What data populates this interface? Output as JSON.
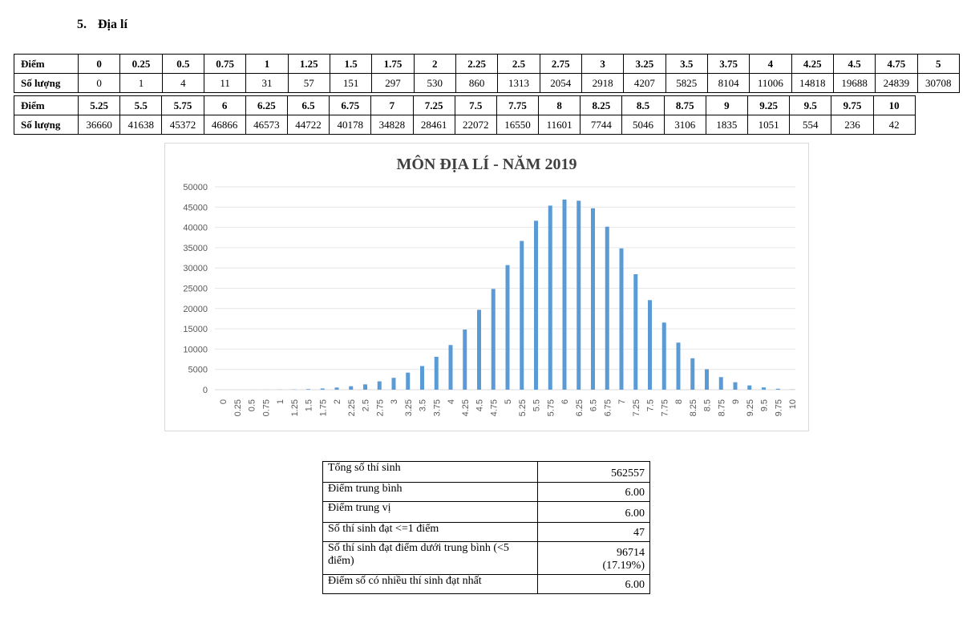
{
  "section": {
    "number": "5.",
    "title": "Địa lí"
  },
  "score_table": {
    "row_label_score": "Điểm",
    "row_label_count": "Số lượng",
    "block1_scores": [
      "0",
      "0.25",
      "0.5",
      "0.75",
      "1",
      "1.25",
      "1.5",
      "1.75",
      "2",
      "2.25",
      "2.5",
      "2.75",
      "3",
      "3.25",
      "3.5",
      "3.75",
      "4",
      "4.25",
      "4.5",
      "4.75",
      "5"
    ],
    "block1_counts": [
      "0",
      "1",
      "4",
      "11",
      "31",
      "57",
      "151",
      "297",
      "530",
      "860",
      "1313",
      "2054",
      "2918",
      "4207",
      "5825",
      "8104",
      "11006",
      "14818",
      "19688",
      "24839",
      "30708"
    ],
    "block2_scores": [
      "5.25",
      "5.5",
      "5.75",
      "6",
      "6.25",
      "6.5",
      "6.75",
      "7",
      "7.25",
      "7.5",
      "7.75",
      "8",
      "8.25",
      "8.5",
      "8.75",
      "9",
      "9.25",
      "9.5",
      "9.75",
      "10"
    ],
    "block2_counts": [
      "36660",
      "41638",
      "45372",
      "46866",
      "46573",
      "44722",
      "40178",
      "34828",
      "28461",
      "22072",
      "16550",
      "11601",
      "7744",
      "5046",
      "3106",
      "1835",
      "1051",
      "554",
      "236",
      "42"
    ]
  },
  "chart_data": {
    "type": "bar",
    "title": "MÔN ĐỊA LÍ - NĂM 2019",
    "xlabel": "",
    "ylabel": "",
    "ylim": [
      0,
      50000
    ],
    "yticks": [
      0,
      5000,
      10000,
      15000,
      20000,
      25000,
      30000,
      35000,
      40000,
      45000,
      50000
    ],
    "grid": true,
    "bar_color": "#5b9bd5",
    "categories": [
      "0",
      "0.25",
      "0.5",
      "0.75",
      "1",
      "1.25",
      "1.5",
      "1.75",
      "2",
      "2.25",
      "2.5",
      "2.75",
      "3",
      "3.25",
      "3.5",
      "3.75",
      "4",
      "4.25",
      "4.5",
      "4.75",
      "5",
      "5.25",
      "5.5",
      "5.75",
      "6",
      "6.25",
      "6.5",
      "6.75",
      "7",
      "7.25",
      "7.5",
      "7.75",
      "8",
      "8.25",
      "8.5",
      "8.75",
      "9",
      "9.25",
      "9.5",
      "9.75",
      "10"
    ],
    "values": [
      0,
      1,
      4,
      11,
      31,
      57,
      151,
      297,
      530,
      860,
      1313,
      2054,
      2918,
      4207,
      5825,
      8104,
      11006,
      14818,
      19688,
      24839,
      30708,
      36660,
      41638,
      45372,
      46866,
      46573,
      44722,
      40178,
      34828,
      28461,
      22072,
      16550,
      11601,
      7744,
      5046,
      3106,
      1835,
      1051,
      554,
      236,
      42
    ]
  },
  "summary": [
    {
      "label": "Tổng số thí sinh",
      "value": "562557"
    },
    {
      "label": "Điểm trung bình",
      "value": "6.00"
    },
    {
      "label": "Điểm trung vị",
      "value": "6.00"
    },
    {
      "label": "Số thí sinh đạt <=1 điểm",
      "value": "47"
    },
    {
      "label": "Số thí sinh đạt điểm dưới trung bình (<5 điểm)",
      "value": "96714",
      "value2": "(17.19%)"
    },
    {
      "label": "Điểm số có nhiều thí sinh đạt nhất",
      "value": "6.00"
    }
  ]
}
